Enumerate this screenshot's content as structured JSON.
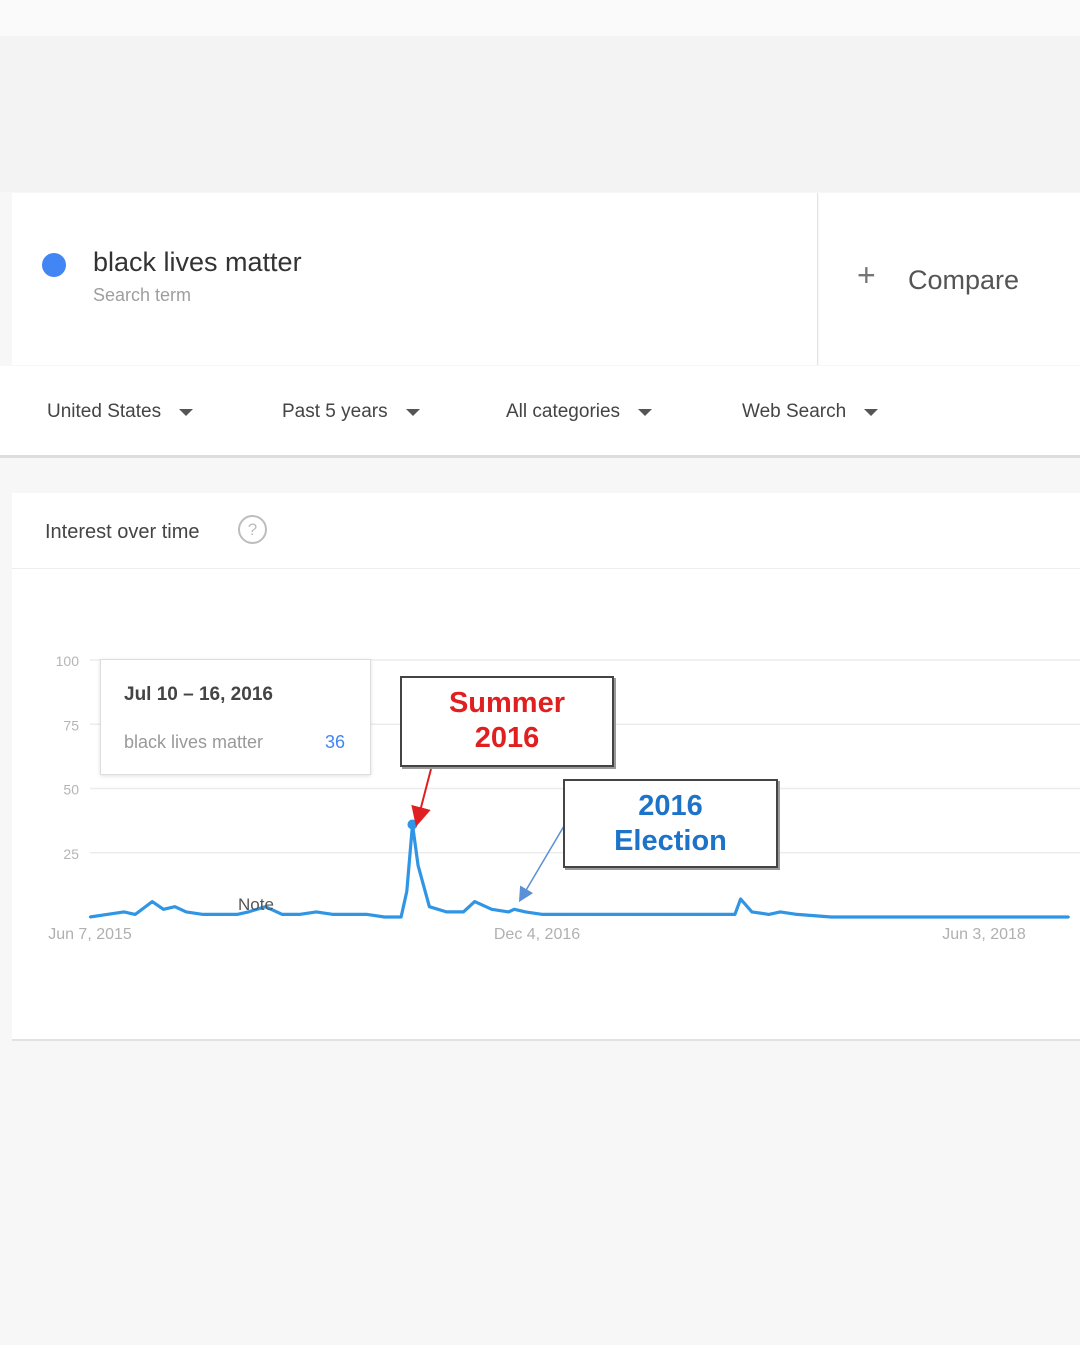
{
  "search_term": {
    "name": "black lives matter",
    "subtitle": "Search term",
    "color": "#4285f4"
  },
  "compare": {
    "label": "Compare"
  },
  "filters": [
    {
      "label": "United States"
    },
    {
      "label": "Past 5 years"
    },
    {
      "label": "All categories"
    },
    {
      "label": "Web Search"
    }
  ],
  "card": {
    "title": "Interest over time"
  },
  "tooltip": {
    "date": "Jul 10 – 16, 2016",
    "term": "black lives matter",
    "value": "36"
  },
  "annotations": {
    "summer": {
      "line1": "Summer",
      "line2": "2016"
    },
    "election": {
      "line1": "2016",
      "line2": "Election"
    },
    "note": "Note"
  },
  "chart_data": {
    "type": "line",
    "ylim": [
      0,
      100
    ],
    "y_ticks": [
      "100",
      "75",
      "50",
      "25"
    ],
    "x_tick_labels": [
      "Jun 7, 2015",
      "Dec 4, 2016",
      "Jun 3, 2018"
    ],
    "series": [
      {
        "name": "black lives matter",
        "color": "#2f95e4",
        "x": [
          "2015-06-07",
          "2015-06-28",
          "2015-07-19",
          "2015-08-02",
          "2015-08-23",
          "2015-09-06",
          "2015-09-20",
          "2015-10-04",
          "2015-10-25",
          "2015-11-15",
          "2015-12-06",
          "2015-12-20",
          "2016-01-10",
          "2016-01-31",
          "2016-02-21",
          "2016-03-13",
          "2016-04-03",
          "2016-04-24",
          "2016-05-15",
          "2016-06-05",
          "2016-06-26",
          "2016-07-03",
          "2016-07-10",
          "2016-07-17",
          "2016-07-31",
          "2016-08-21",
          "2016-09-11",
          "2016-09-25",
          "2016-10-16",
          "2016-11-06",
          "2016-11-13",
          "2016-11-27",
          "2016-12-18",
          "2017-01-15",
          "2017-02-26",
          "2017-04-09",
          "2017-05-21",
          "2017-07-02",
          "2017-08-13",
          "2017-08-20",
          "2017-09-03",
          "2017-09-24",
          "2017-10-08",
          "2017-10-29",
          "2017-12-10",
          "2018-01-21",
          "2018-03-04",
          "2018-04-15",
          "2018-05-27",
          "2018-07-08",
          "2018-08-19",
          "2018-09-30"
        ],
        "y": [
          0,
          1,
          2,
          1,
          6,
          3,
          4,
          2,
          1,
          1,
          1,
          2,
          4,
          1,
          1,
          2,
          1,
          1,
          1,
          0,
          0,
          10,
          36,
          20,
          4,
          2,
          2,
          6,
          3,
          2,
          3,
          2,
          1,
          1,
          1,
          1,
          1,
          1,
          1,
          7,
          2,
          1,
          2,
          1,
          0,
          0,
          0,
          0,
          0,
          0,
          0,
          0
        ]
      }
    ]
  }
}
